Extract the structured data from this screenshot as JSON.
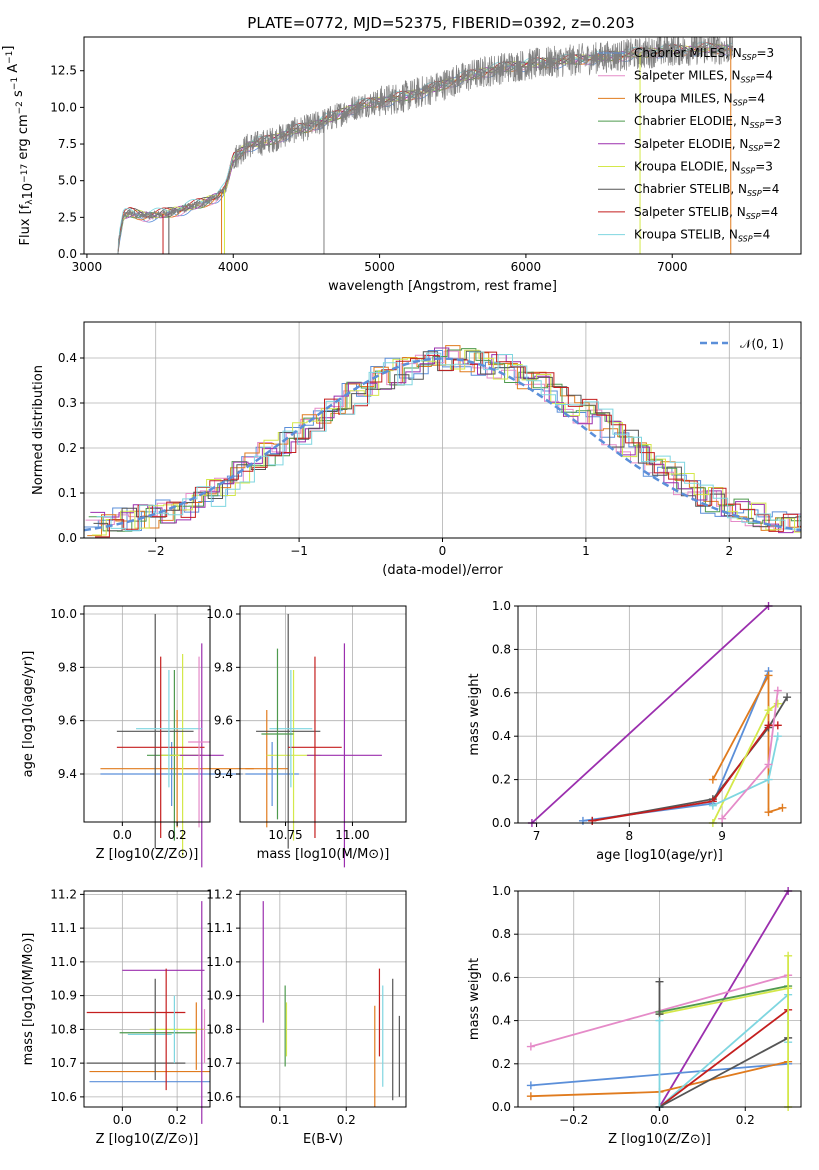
{
  "figure": {
    "title": "PLATE=0772, MJD=52375, FIBERID=0392, z=0.203"
  },
  "chart_data": [
    {
      "id": "spectrum",
      "type": "line",
      "title": "PLATE=0772, MJD=52375, FIBERID=0392, z=0.203",
      "xlabel": "wavelength [Angstrom, rest frame]",
      "ylabel": "Flux [f_λ 10^-17 erg cm^-2 s^-1 A^-1]",
      "xlim": [
        2980,
        7880
      ],
      "ylim": [
        0,
        14.8
      ],
      "xticks": [
        3000,
        4000,
        5000,
        6000,
        7000
      ],
      "yticks": [
        0.0,
        2.5,
        5.0,
        7.5,
        10.0,
        12.5
      ],
      "legend_position": "top-right",
      "grid": false,
      "continuum": {
        "x": [
          3200,
          3250,
          3300,
          3400,
          3500,
          3600,
          3700,
          3800,
          3900,
          3950,
          4000,
          4100,
          4200,
          4300,
          4400,
          4500,
          4600,
          4700,
          4800,
          4900,
          5000,
          5100,
          5200,
          5300,
          5400,
          5500,
          5600,
          5700,
          5800,
          5900,
          6000,
          6100,
          6200,
          6300,
          6400,
          6500,
          6600,
          6700,
          6800,
          6900,
          7000,
          7100,
          7200,
          7300,
          7400
        ],
        "y": [
          0.0,
          2.6,
          2.8,
          2.6,
          2.7,
          2.9,
          3.2,
          3.5,
          4.0,
          4.5,
          6.5,
          7.4,
          7.6,
          7.9,
          8.4,
          8.6,
          9.0,
          9.4,
          9.9,
          10.2,
          10.4,
          10.6,
          10.8,
          11.1,
          11.4,
          11.8,
          12.1,
          12.4,
          12.6,
          12.8,
          12.9,
          13.0,
          13.1,
          13.2,
          13.3,
          13.4,
          13.5,
          13.6,
          13.7,
          13.8,
          13.9,
          13.9,
          14.0,
          14.0,
          14.0
        ]
      },
      "series": [
        {
          "name": "Chabrier MILES, N_SSP=3",
          "label_main": "Chabrier MILES, N",
          "label_sub": "SSP",
          "label_tail": "=3",
          "color": "#5b8fd9"
        },
        {
          "name": "Salpeter MILES, N_SSP=4",
          "label_main": "Salpeter MILES, N",
          "label_sub": "SSP",
          "label_tail": "=4",
          "color": "#e58bc8"
        },
        {
          "name": "Kroupa MILES, N_SSP=4",
          "label_main": "Kroupa MILES, N",
          "label_sub": "SSP",
          "label_tail": "=4",
          "color": "#e07b1e"
        },
        {
          "name": "Chabrier ELODIE, N_SSP=3",
          "label_main": "Chabrier ELODIE, N",
          "label_sub": "SSP",
          "label_tail": "=3",
          "color": "#4e9a4e"
        },
        {
          "name": "Salpeter ELODIE, N_SSP=2",
          "label_main": "Salpeter ELODIE, N",
          "label_sub": "SSP",
          "label_tail": "=2",
          "color": "#9b2fae"
        },
        {
          "name": "Kroupa ELODIE, N_SSP=3",
          "label_main": "Kroupa ELODIE, N",
          "label_sub": "SSP",
          "label_tail": "=3",
          "color": "#d4e84a"
        },
        {
          "name": "Chabrier STELIB, N_SSP=4",
          "label_main": "Chabrier STELIB, N",
          "label_sub": "SSP",
          "label_tail": "=4",
          "color": "#555555"
        },
        {
          "name": "Salpeter STELIB, N_SSP=4",
          "label_main": "Salpeter STELIB, N",
          "label_sub": "SSP",
          "label_tail": "=4",
          "color": "#c41e1e"
        },
        {
          "name": "Kroupa STELIB, N_SSP=4",
          "label_main": "Kroupa STELIB, N",
          "label_sub": "SSP",
          "label_tail": "=4",
          "color": "#7fd6e0"
        }
      ],
      "data_color": "#808080",
      "spikes": [
        {
          "x": 3520,
          "color": "#c41e1e"
        },
        {
          "x": 3560,
          "color": "#555555"
        },
        {
          "x": 3920,
          "color": "#e07b1e"
        },
        {
          "x": 3940,
          "color": "#d4e84a"
        },
        {
          "x": 4620,
          "color": "#808080"
        },
        {
          "x": 6780,
          "color": "#d4e84a"
        },
        {
          "x": 7400,
          "color": "#e07b1e"
        }
      ]
    },
    {
      "id": "residual_hist",
      "type": "line",
      "xlabel": "(data-model)/error",
      "ylabel": "Normed distribution",
      "xlim": [
        -2.5,
        2.5
      ],
      "ylim": [
        0,
        0.48
      ],
      "xticks": [
        -2,
        -1,
        0,
        1,
        2
      ],
      "yticks": [
        0.0,
        0.1,
        0.2,
        0.3,
        0.4
      ],
      "grid": true,
      "legend_position": "top-right",
      "legend": "𝒩(0, 1)",
      "bin_edges_start": -2.5,
      "bin_width": 0.1,
      "base_heights": [
        0.03,
        0.035,
        0.04,
        0.045,
        0.05,
        0.06,
        0.07,
        0.085,
        0.1,
        0.12,
        0.14,
        0.16,
        0.19,
        0.21,
        0.23,
        0.26,
        0.28,
        0.3,
        0.32,
        0.34,
        0.36,
        0.37,
        0.38,
        0.39,
        0.395,
        0.4,
        0.395,
        0.39,
        0.38,
        0.37,
        0.36,
        0.34,
        0.32,
        0.3,
        0.28,
        0.26,
        0.23,
        0.21,
        0.19,
        0.16,
        0.14,
        0.12,
        0.1,
        0.085,
        0.07,
        0.06,
        0.05,
        0.04,
        0.035,
        0.03
      ],
      "normal_color": "#5b8fd9"
    },
    {
      "id": "age_vs_Z",
      "type": "scatter",
      "xlabel": "Z [log10(Z/Z⊙)]",
      "ylabel": "age [log10(age/yr)]",
      "xlim": [
        -0.14,
        0.32
      ],
      "ylim": [
        9.22,
        10.03
      ],
      "xticks": [
        0.0,
        0.2
      ],
      "yticks": [
        9.4,
        9.6,
        9.8,
        10.0
      ],
      "points": [
        {
          "x": 0.18,
          "y": 9.4,
          "xerr": 0.26,
          "yerr": 0.12,
          "color": "#5b8fd9"
        },
        {
          "x": 0.2,
          "y": 9.42,
          "xerr": 0.28,
          "yerr": 0.22,
          "color": "#e07b1e"
        },
        {
          "x": 0.19,
          "y": 9.47,
          "xerr": 0.1,
          "yerr": 0.32,
          "color": "#4e9a4e"
        },
        {
          "x": 0.22,
          "y": 9.47,
          "xerr": 0.08,
          "yerr": 0.38,
          "color": "#d4e84a"
        },
        {
          "x": 0.29,
          "y": 9.47,
          "xerr": 0.08,
          "yerr": 0.42,
          "color": "#9b2fae"
        },
        {
          "x": 0.12,
          "y": 9.56,
          "xerr": 0.14,
          "yerr": 0.44,
          "color": "#555555"
        },
        {
          "x": 0.14,
          "y": 9.5,
          "xerr": 0.16,
          "yerr": 0.34,
          "color": "#c41e1e"
        },
        {
          "x": 0.17,
          "y": 9.57,
          "xerr": 0.12,
          "yerr": 0.22,
          "color": "#7fd6e0"
        },
        {
          "x": 0.28,
          "y": 9.52,
          "xerr": 0.04,
          "yerr": 0.32,
          "color": "#e58bc8"
        }
      ]
    },
    {
      "id": "age_vs_mass",
      "type": "scatter",
      "xlabel": "mass [log10(M/M⊙)]",
      "ylabel": "",
      "xlim": [
        10.58,
        11.2
      ],
      "ylim": [
        9.22,
        10.03
      ],
      "xticks": [
        10.75,
        11.0
      ],
      "yticks": [
        9.4,
        9.6,
        9.8,
        10.0
      ],
      "points": [
        {
          "x": 10.7,
          "y": 9.4,
          "xerr": 0.1,
          "yerr": 0.12,
          "color": "#5b8fd9"
        },
        {
          "x": 10.68,
          "y": 9.42,
          "xerr": 0.08,
          "yerr": 0.22,
          "color": "#e07b1e"
        },
        {
          "x": 10.78,
          "y": 9.47,
          "xerr": 0.1,
          "yerr": 0.32,
          "color": "#d4e84a"
        },
        {
          "x": 10.97,
          "y": 9.47,
          "xerr": 0.14,
          "yerr": 0.42,
          "color": "#9b2fae"
        },
        {
          "x": 10.76,
          "y": 9.56,
          "xerr": 0.12,
          "yerr": 0.44,
          "color": "#555555"
        },
        {
          "x": 10.86,
          "y": 9.5,
          "xerr": 0.1,
          "yerr": 0.34,
          "color": "#c41e1e"
        },
        {
          "x": 10.77,
          "y": 9.57,
          "xerr": 0.08,
          "yerr": 0.22,
          "color": "#7fd6e0"
        },
        {
          "x": 10.72,
          "y": 9.55,
          "xerr": 0.06,
          "yerr": 0.32,
          "color": "#4e9a4e"
        }
      ]
    },
    {
      "id": "weight_vs_age",
      "type": "line",
      "xlabel": "age [log10(age/yr)]",
      "ylabel": "mass weight",
      "xlim": [
        6.8,
        9.85
      ],
      "ylim": [
        0,
        1.0
      ],
      "xticks": [
        7,
        8,
        9
      ],
      "yticks": [
        0.0,
        0.2,
        0.4,
        0.6,
        0.8,
        1.0
      ],
      "series": [
        {
          "color": "#9b2fae",
          "x": [
            6.95,
            9.5
          ],
          "y": [
            0.0,
            1.0
          ]
        },
        {
          "color": "#5b8fd9",
          "x": [
            7.5,
            8.9,
            9.5
          ],
          "y": [
            0.01,
            0.09,
            0.7
          ]
        },
        {
          "color": "#e07b1e",
          "x": [
            8.9,
            9.5,
            9.5,
            9.65
          ],
          "y": [
            0.2,
            0.68,
            0.05,
            0.07
          ]
        },
        {
          "color": "#555555",
          "x": [
            7.6,
            8.9,
            9.5,
            9.7
          ],
          "y": [
            0.01,
            0.11,
            0.44,
            0.58
          ]
        },
        {
          "color": "#c41e1e",
          "x": [
            7.6,
            8.9,
            9.5,
            9.6
          ],
          "y": [
            0.01,
            0.1,
            0.45,
            0.45
          ]
        },
        {
          "color": "#d4e84a",
          "x": [
            8.9,
            9.5,
            9.6
          ],
          "y": [
            0.0,
            0.52,
            0.55
          ]
        },
        {
          "color": "#7fd6e0",
          "x": [
            8.9,
            9.5,
            9.6
          ],
          "y": [
            0.08,
            0.2,
            0.4
          ]
        },
        {
          "color": "#e58bc8",
          "x": [
            9.0,
            9.5,
            9.6
          ],
          "y": [
            0.02,
            0.27,
            0.61
          ]
        }
      ]
    },
    {
      "id": "mass_vs_Z",
      "type": "scatter",
      "xlabel": "Z [log10(Z/Z⊙)]",
      "ylabel": "mass [log10(M/M⊙)]",
      "xlim": [
        -0.14,
        0.32
      ],
      "ylim": [
        10.57,
        11.21
      ],
      "xticks": [
        0.0,
        0.2
      ],
      "yticks": [
        10.6,
        10.7,
        10.8,
        10.9,
        11.0,
        11.1,
        11.2
      ],
      "points": [
        {
          "x": 0.1,
          "y": 10.645,
          "xerr": 0.22,
          "yerr": 0.0,
          "color": "#5b8fd9"
        },
        {
          "x": 0.1,
          "y": 10.675,
          "xerr": 0.22,
          "yerr": 0.0,
          "color": "#e07b1e"
        },
        {
          "x": 0.05,
          "y": 10.7,
          "xerr": 0.18,
          "yerr": 0.0,
          "color": "#555555"
        },
        {
          "x": 0.13,
          "y": 10.79,
          "xerr": 0.14,
          "yerr": 0.0,
          "color": "#4e9a4e"
        },
        {
          "x": 0.2,
          "y": 10.8,
          "xerr": 0.1,
          "yerr": 0.0,
          "color": "#d4e84a"
        },
        {
          "x": 0.05,
          "y": 10.85,
          "xerr": 0.18,
          "yerr": 0.0,
          "color": "#c41e1e"
        },
        {
          "x": 0.15,
          "y": 10.975,
          "xerr": 0.15,
          "yerr": 0.0,
          "color": "#9b2fae"
        },
        {
          "x": 0.1,
          "y": 10.785,
          "xerr": 0.08,
          "yerr": 0.0,
          "color": "#7fd6e0"
        },
        {
          "x": 0.29,
          "y": 10.85,
          "xerr": 0.0,
          "yerr": 0.33,
          "color": "#9b2fae"
        },
        {
          "x": 0.27,
          "y": 10.78,
          "xerr": 0.0,
          "yerr": 0.1,
          "color": "#e07b1e"
        },
        {
          "x": 0.16,
          "y": 10.8,
          "xerr": 0.0,
          "yerr": 0.18,
          "color": "#c41e1e"
        },
        {
          "x": 0.12,
          "y": 10.8,
          "xerr": 0.0,
          "yerr": 0.15,
          "color": "#555555"
        },
        {
          "x": 0.19,
          "y": 10.8,
          "xerr": 0.0,
          "yerr": 0.1,
          "color": "#7fd6e0"
        },
        {
          "x": 0.3,
          "y": 10.78,
          "xerr": 0.0,
          "yerr": 0.08,
          "color": "#e58bc8"
        }
      ]
    },
    {
      "id": "mass_vs_EBV",
      "type": "scatter",
      "xlabel": "E(B-V)",
      "ylabel": "",
      "xlim": [
        0.04,
        0.29
      ],
      "ylim": [
        10.57,
        11.21
      ],
      "xticks": [
        0.1,
        0.2
      ],
      "yticks": [
        10.6,
        10.7,
        10.8,
        10.9,
        11.0,
        11.1,
        11.2
      ],
      "points": [
        {
          "x": 0.075,
          "y": 11.0,
          "xerr": 0.0,
          "yerr": 0.18,
          "color": "#9b2fae"
        },
        {
          "x": 0.108,
          "y": 10.81,
          "xerr": 0.0,
          "yerr": 0.12,
          "color": "#4e9a4e"
        },
        {
          "x": 0.11,
          "y": 10.8,
          "xerr": 0.0,
          "yerr": 0.08,
          "color": "#d4e84a"
        },
        {
          "x": 0.243,
          "y": 10.72,
          "xerr": 0.0,
          "yerr": 0.15,
          "color": "#e07b1e"
        },
        {
          "x": 0.25,
          "y": 10.85,
          "xerr": 0.0,
          "yerr": 0.13,
          "color": "#c41e1e"
        },
        {
          "x": 0.255,
          "y": 10.78,
          "xerr": 0.0,
          "yerr": 0.15,
          "color": "#7fd6e0"
        },
        {
          "x": 0.27,
          "y": 10.77,
          "xerr": 0.0,
          "yerr": 0.18,
          "color": "#555555"
        },
        {
          "x": 0.28,
          "y": 10.72,
          "xerr": 0.0,
          "yerr": 0.12,
          "color": "#555555"
        }
      ]
    },
    {
      "id": "weight_vs_Z",
      "type": "line",
      "xlabel": "Z [log10(Z/Z⊙)]",
      "ylabel": "mass weight",
      "xlim": [
        -0.33,
        0.33
      ],
      "ylim": [
        0,
        1.0
      ],
      "xticks": [
        -0.2,
        0.0,
        0.2
      ],
      "yticks": [
        0.0,
        0.2,
        0.4,
        0.6,
        0.8,
        1.0
      ],
      "series": [
        {
          "color": "#9b2fae",
          "x": [
            0.0,
            0.3
          ],
          "y": [
            0.0,
            1.0
          ]
        },
        {
          "color": "#e58bc8",
          "x": [
            -0.3,
            0.3
          ],
          "y": [
            0.28,
            0.61
          ]
        },
        {
          "color": "#5b8fd9",
          "x": [
            -0.3,
            0.3
          ],
          "y": [
            0.1,
            0.2
          ]
        },
        {
          "color": "#e07b1e",
          "x": [
            -0.3,
            0.0,
            0.3
          ],
          "y": [
            0.05,
            0.07,
            0.21
          ]
        },
        {
          "color": "#d4e84a",
          "x": [
            0.0,
            0.3
          ],
          "y": [
            0.43,
            0.55
          ]
        },
        {
          "color": "#4e9a4e",
          "x": [
            0.0,
            0.3
          ],
          "y": [
            0.44,
            0.56
          ]
        },
        {
          "color": "#7fd6e0",
          "x": [
            0.0,
            0.3,
            0.3
          ],
          "y": [
            0.0,
            0.52,
            0.3
          ]
        },
        {
          "color": "#c41e1e",
          "x": [
            0.0,
            0.3
          ],
          "y": [
            0.0,
            0.45
          ]
        },
        {
          "color": "#555555",
          "x": [
            0.0,
            0.3
          ],
          "y": [
            0.0,
            0.32
          ]
        },
        {
          "color": "#555555",
          "x": [
            0.0,
            0.0
          ],
          "y": [
            0.43,
            0.58
          ]
        },
        {
          "color": "#7fd6e0",
          "x": [
            0.0,
            0.0
          ],
          "y": [
            0.0,
            0.4
          ]
        },
        {
          "color": "#d4e84a",
          "x": [
            0.3,
            0.3
          ],
          "y": [
            0.0,
            0.7
          ]
        }
      ]
    }
  ]
}
